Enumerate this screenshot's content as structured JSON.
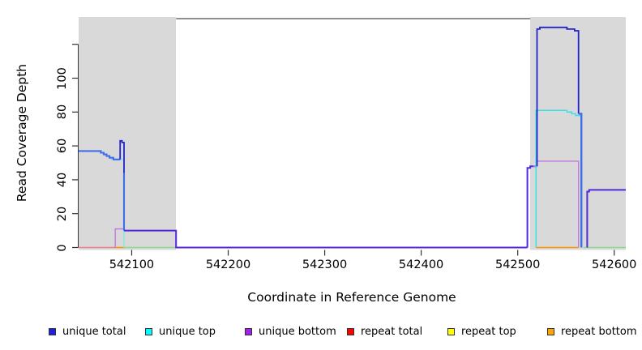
{
  "chart_data": {
    "type": "line",
    "title": "",
    "xlabel": "Coordinate in Reference Genome",
    "ylabel": "Read Coverage Depth",
    "xlim": [
      542045,
      542612
    ],
    "ylim": [
      0,
      136
    ],
    "grid": false,
    "x_ticks": [
      542100,
      542200,
      542300,
      542400,
      542500,
      542600
    ],
    "x_tick_labels": [
      "542100",
      "542200",
      "542300",
      "542400",
      "542500",
      "542600"
    ],
    "y_ticks": [
      0,
      20,
      40,
      60,
      80,
      100,
      120
    ],
    "y_tick_labels": [
      "0",
      "20",
      "40",
      "60",
      "80",
      "100",
      ""
    ],
    "shade_color": "#D9D9D9",
    "shaded_regions": [
      {
        "name": "left-repeat-region",
        "x0": 542045,
        "x1": 542146
      },
      {
        "name": "right-repeat-region",
        "x0": 542513,
        "x1": 542612
      }
    ],
    "legend": [
      {
        "label": "unique total",
        "color": "#1F1FE0"
      },
      {
        "label": "unique top",
        "color": "#00FFFF"
      },
      {
        "label": "unique bottom",
        "color": "#A020F0"
      },
      {
        "label": "repeat total",
        "color": "#FF0000"
      },
      {
        "label": "repeat top",
        "color": "#FFFF00"
      },
      {
        "label": "repeat bottom",
        "color": "#FFA500"
      }
    ],
    "series_segments": [
      {
        "name": "repeat-total-left",
        "color": "#F0808C",
        "width": 1.4,
        "points": [
          [
            542045,
            0
          ],
          [
            542083,
            0
          ]
        ]
      },
      {
        "name": "repeat-bottom-left",
        "color": "#FF9500",
        "width": 1.6,
        "points": [
          [
            542083,
            0
          ],
          [
            542092,
            0
          ]
        ]
      },
      {
        "name": "repeat-top-left-blend",
        "color": "#8FD88F",
        "width": 1.4,
        "points": [
          [
            542092,
            0
          ],
          [
            542146,
            0
          ]
        ]
      },
      {
        "name": "repeat-bottom-right",
        "color": "#FF9500",
        "width": 1.6,
        "points": [
          [
            542519,
            0
          ],
          [
            542563,
            0
          ]
        ]
      },
      {
        "name": "repeat-top-right-blend",
        "color": "#8FD88F",
        "width": 1.4,
        "points": [
          [
            542568,
            0
          ],
          [
            542612,
            0
          ]
        ]
      },
      {
        "name": "unique-bottom-left",
        "color": "#C07BDE",
        "width": 1.4,
        "points": [
          [
            542083,
            0
          ],
          [
            542083,
            11
          ],
          [
            542092,
            11
          ]
        ]
      },
      {
        "name": "unique-top-left",
        "color": "#8AE4E4",
        "width": 1.5,
        "points": [
          [
            542078,
            52
          ],
          [
            542092,
            52
          ],
          [
            542092,
            0
          ]
        ]
      },
      {
        "name": "unique-total-left-blend",
        "color": "#3E6FE8",
        "width": 2.1,
        "points": [
          [
            542045,
            57
          ],
          [
            542068,
            57
          ],
          [
            542068,
            56
          ],
          [
            542071,
            56
          ],
          [
            542071,
            55
          ],
          [
            542074,
            55
          ],
          [
            542074,
            54
          ],
          [
            542077,
            54
          ],
          [
            542077,
            53
          ],
          [
            542081,
            53
          ],
          [
            542081,
            52
          ],
          [
            542088,
            52
          ]
        ]
      },
      {
        "name": "unique-total-left-spike",
        "color": "#2323CC",
        "width": 1.8,
        "points": [
          [
            542088,
            52
          ],
          [
            542088,
            63
          ],
          [
            542090,
            63
          ],
          [
            542090,
            62
          ],
          [
            542092,
            62
          ],
          [
            542092,
            44
          ]
        ]
      },
      {
        "name": "unique-total-left-drop",
        "color": "#3E6FE8",
        "width": 2.1,
        "points": [
          [
            542092,
            44
          ],
          [
            542092,
            10
          ]
        ]
      },
      {
        "name": "unique-total-zero-mid",
        "color": "#5229DD",
        "width": 2.0,
        "points": [
          [
            542092,
            10
          ],
          [
            542146,
            10
          ],
          [
            542146,
            0
          ],
          [
            542510,
            0
          ]
        ]
      },
      {
        "name": "unique-total-right-rise",
        "color": "#5229DD",
        "width": 2.0,
        "points": [
          [
            542510,
            0
          ],
          [
            542510,
            47
          ],
          [
            542513,
            47
          ],
          [
            542513,
            48
          ],
          [
            542520,
            48
          ]
        ]
      },
      {
        "name": "unique-bottom-right",
        "color": "#C07BDE",
        "width": 1.4,
        "points": [
          [
            542516,
            48
          ],
          [
            542519,
            48
          ],
          [
            542519,
            51
          ],
          [
            542563,
            51
          ],
          [
            542563,
            0
          ]
        ]
      },
      {
        "name": "unique-top-right",
        "color": "#3CDEE8",
        "width": 1.5,
        "points": [
          [
            542519,
            0
          ],
          [
            542519,
            81
          ],
          [
            542551,
            81
          ],
          [
            542551,
            80
          ],
          [
            542556,
            80
          ],
          [
            542556,
            79
          ],
          [
            542560,
            79
          ],
          [
            542560,
            78
          ],
          [
            542566,
            78
          ]
        ]
      },
      {
        "name": "unique-total-right-navy",
        "color": "#2323CC",
        "width": 1.8,
        "points": [
          [
            542520,
            48
          ],
          [
            542520,
            129
          ],
          [
            542523,
            129
          ],
          [
            542523,
            130
          ],
          [
            542551,
            130
          ],
          [
            542551,
            129
          ],
          [
            542559,
            129
          ],
          [
            542559,
            128
          ],
          [
            542563,
            128
          ],
          [
            542563,
            79
          ]
        ]
      },
      {
        "name": "unique-total-right-blend-drop",
        "color": "#3E6FE8",
        "width": 2.4,
        "points": [
          [
            542563,
            79
          ],
          [
            542566,
            79
          ],
          [
            542566,
            0
          ]
        ]
      },
      {
        "name": "unique-total-right-end",
        "color": "#5229DD",
        "width": 2.0,
        "points": [
          [
            542572,
            0
          ],
          [
            542572,
            33
          ],
          [
            542574,
            33
          ],
          [
            542574,
            34
          ],
          [
            542612,
            34
          ]
        ]
      }
    ]
  }
}
